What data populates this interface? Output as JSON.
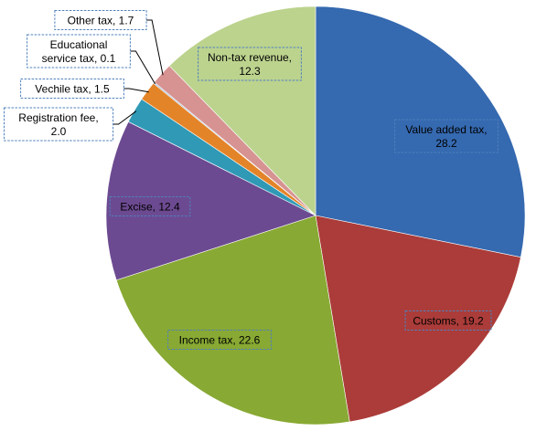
{
  "chart_data": {
    "type": "pie",
    "start_angle_deg": 0,
    "direction": "clockwise",
    "slices": [
      {
        "name": "Value added tax",
        "value": 28.2,
        "color": "#3569b0",
        "label": [
          "Value added tax,",
          "28.2"
        ]
      },
      {
        "name": "Customs",
        "value": 19.2,
        "color": "#ab3c39",
        "label": [
          "Customs, 19.2"
        ]
      },
      {
        "name": "Income tax",
        "value": 22.6,
        "color": "#88a933",
        "label": [
          "Income tax, 22.6"
        ]
      },
      {
        "name": "Excise",
        "value": 12.4,
        "color": "#6c4a91",
        "label": [
          "Excise, 12.4"
        ]
      },
      {
        "name": "Registration fee",
        "value": 2.0,
        "color": "#2f99b6",
        "label": [
          "Registration fee,",
          "2.0"
        ]
      },
      {
        "name": "Vechile tax",
        "value": 1.5,
        "color": "#e48428",
        "label": [
          "Vechile tax, 1.5"
        ]
      },
      {
        "name": "Educational service tax",
        "value": 0.1,
        "color": "#8eaed4",
        "label": [
          "Educational",
          "service tax, 0.1"
        ]
      },
      {
        "name": "Other tax",
        "value": 1.7,
        "color": "#d69392",
        "label": [
          "Other tax, 1.7"
        ]
      },
      {
        "name": "Non-tax revenue",
        "value": 12.3,
        "color": "#bcd38e",
        "label": [
          "Non-tax revenue,",
          "12.3"
        ]
      }
    ]
  }
}
